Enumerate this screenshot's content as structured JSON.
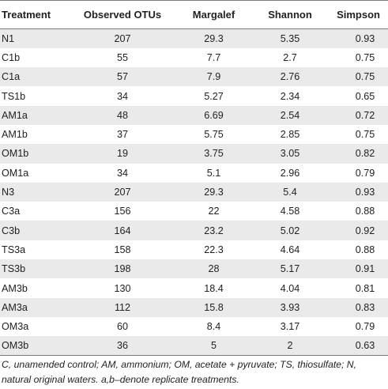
{
  "table": {
    "headers": [
      "Treatment",
      "Observed OTUs",
      "Margalef",
      "Shannon",
      "Simpson"
    ],
    "rows": [
      [
        "N1",
        "207",
        "29.3",
        "5.35",
        "0.93"
      ],
      [
        "C1b",
        "55",
        "7.7",
        "2.7",
        "0.75"
      ],
      [
        "C1a",
        "57",
        "7.9",
        "2.76",
        "0.75"
      ],
      [
        "TS1b",
        "34",
        "5.27",
        "2.34",
        "0.65"
      ],
      [
        "AM1a",
        "48",
        "6.69",
        "2.54",
        "0.72"
      ],
      [
        "AM1b",
        "37",
        "5.75",
        "2.85",
        "0.75"
      ],
      [
        "OM1b",
        "19",
        "3.75",
        "3.05",
        "0.82"
      ],
      [
        "OM1a",
        "34",
        "5.1",
        "2.96",
        "0.79"
      ],
      [
        "N3",
        "207",
        "29.3",
        "5.4",
        "0.93"
      ],
      [
        "C3a",
        "156",
        "22",
        "4.58",
        "0.88"
      ],
      [
        "C3b",
        "164",
        "23.2",
        "5.02",
        "0.92"
      ],
      [
        "TS3a",
        "158",
        "22.3",
        "4.64",
        "0.88"
      ],
      [
        "TS3b",
        "198",
        "28",
        "5.17",
        "0.91"
      ],
      [
        "AM3b",
        "130",
        "18.4",
        "4.04",
        "0.81"
      ],
      [
        "AM3a",
        "112",
        "15.8",
        "3.93",
        "0.83"
      ],
      [
        "OM3a",
        "60",
        "8.4",
        "3.17",
        "0.79"
      ],
      [
        "OM3b",
        "36",
        "5",
        "2",
        "0.63"
      ]
    ]
  },
  "footnote": "C, unamended control; AM, ammonium; OM, acetate + pyruvate; TS, thiosulfate; N, natural original waters. a,b–denote replicate treatments."
}
